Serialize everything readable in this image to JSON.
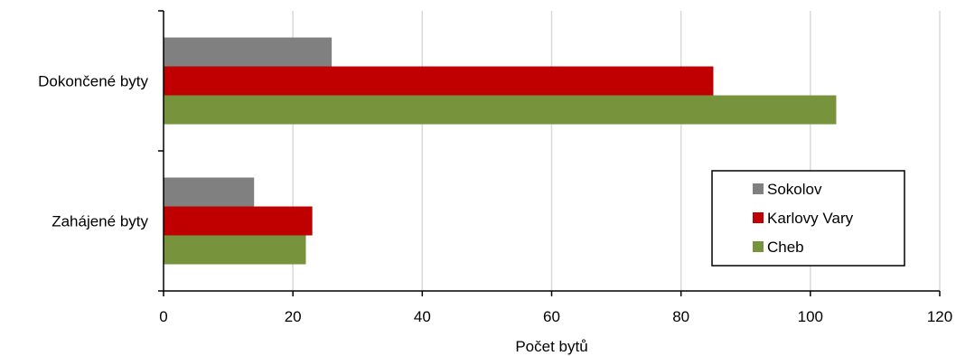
{
  "chart_data": {
    "type": "bar",
    "orientation": "horizontal",
    "categories": [
      "Dokončené byty",
      "Zahájené byty"
    ],
    "series": [
      {
        "name": "Sokolov",
        "values": [
          26,
          14
        ],
        "color": "#808080"
      },
      {
        "name": "Karlovy Vary",
        "values": [
          85,
          23
        ],
        "color": "#c00000"
      },
      {
        "name": "Cheb",
        "values": [
          104,
          22
        ],
        "color": "#77933c"
      }
    ],
    "xlabel": "Počet bytů",
    "ylabel": "",
    "xlim": [
      0,
      120
    ],
    "xticks": [
      "0",
      "20",
      "40",
      "60",
      "80",
      "100",
      "120"
    ],
    "grid": "vertical",
    "legend_position": "right"
  }
}
